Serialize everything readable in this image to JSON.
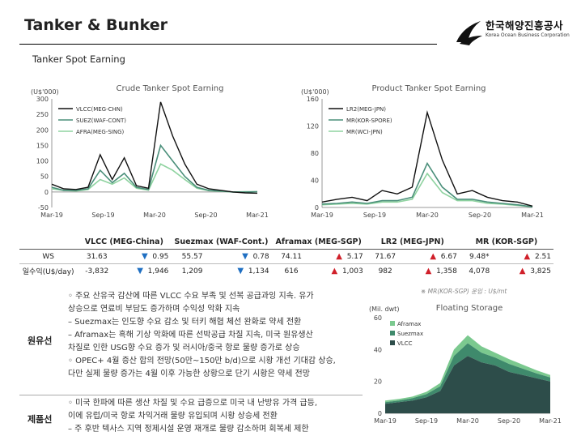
{
  "header": {
    "title": "Tanker & Bunker",
    "subtitle": "Tanker Spot Earning"
  },
  "logo": {
    "korean": "한국해양진흥공사",
    "english": "Korea Ocean Business Corporation"
  },
  "crude_chart": {
    "title": "Crude Tanker Spot Earning",
    "unit": "(U$'000)",
    "yticks": [
      "300",
      "250",
      "200",
      "150",
      "100",
      "50",
      "0",
      "-50"
    ],
    "xticks": [
      "Mar-19",
      "Sep-19",
      "Mar-20",
      "Sep-20",
      "Mar-21"
    ],
    "legend": [
      "VLCC(MEG-CHN)",
      "SUEZ(WAF-CONT)",
      "AFRA(MEG-SING)"
    ]
  },
  "product_chart": {
    "title": "Product Tanker Spot Earning",
    "unit": "(U$'000)",
    "yticks": [
      "160",
      "120",
      "80",
      "40",
      "0"
    ],
    "xticks": [
      "Mar-19",
      "Sep-19",
      "Mar-20",
      "Sep-20",
      "Mar-21"
    ],
    "legend": [
      "LR2(MEG-JPN)",
      "MR(KOR-SPORE)",
      "MR(WCI-JPN)"
    ]
  },
  "table": {
    "headers": [
      "VLCC (MEG-China)",
      "Suezmax (WAF-Cont.)",
      "Aframax (MEG-SGP)",
      "LR2 (MEG-JPN)",
      "MR (KOR-SGP)"
    ],
    "rows": [
      {
        "label": "WS",
        "cells": [
          {
            "value": "31.63",
            "dir": "▼",
            "change": "0.95"
          },
          {
            "value": "55.57",
            "dir": "▼",
            "change": "0.78"
          },
          {
            "value": "74.11",
            "dir": "▲",
            "change": "5.17"
          },
          {
            "value": "71.67",
            "dir": "▲",
            "change": "6.67"
          },
          {
            "value": "9.48*",
            "dir": "▲",
            "change": "2.51"
          }
        ]
      },
      {
        "label": "일수익(U$/day)",
        "cells": [
          {
            "value": "-3,832",
            "dir": "▼",
            "change": "1,946"
          },
          {
            "value": "1,209",
            "dir": "▼",
            "change": "1,134"
          },
          {
            "value": "616",
            "dir": "▲",
            "change": "1,003"
          },
          {
            "value": "982",
            "dir": "▲",
            "change": "1,358"
          },
          {
            "value": "4,078",
            "dir": "▲",
            "change": "3,825"
          }
        ]
      }
    ],
    "note": "※ MR(KOR-SGP) 운임 : U$/mt"
  },
  "sections": [
    {
      "category": "원유선",
      "lines": [
        "◦ 주요 산유국 감산에 따른 VLCC 수요 부족 및 선복 공급과잉 지속. 유가",
        "   상승으로 연료비 부담도 증가하며 수익성 악화 지속",
        "  – Suezmax는 인도향 수요 감소 및 터키 해협 체선 완화로 약세 전환",
        "  – Aframax는 흑해 기상 악화에 따른 선박공급 차질 지속, 미국 원유생산",
        "     차질로 인한 USG향 수요 증가 및 러시아/중국 항로 물량 증가로 상승",
        "◦ OPEC+ 4월 증산 합의 전망(50만~150만 b/d)으로 시황 개선 기대감 상승,",
        "   다만 실제 물량 증가는 4월 이후 가능한 상황으로 단기 시황은 약세 전망"
      ]
    },
    {
      "category": "제품선",
      "lines": [
        "◦ 미국 한파에 따른 생산 차질 및 수요 급증으로 미국 내 난방유 가격 급등,",
        "   이에 유럽/미국 항로 차익거래 물량 유입되며 시황 상승세 전환",
        "  – 주 후반 텍사스 지역 정제시설 운영 재개로 물량 감소하며 회복세 제한"
      ]
    }
  ],
  "storage_chart": {
    "title": "Floating Storage",
    "unit": "(Mil. dwt)",
    "yticks": [
      "60",
      "40",
      "20",
      "0"
    ],
    "xticks": [
      "Mar-19",
      "Sep-19",
      "Mar-20",
      "Sep-20",
      "Mar-21"
    ],
    "legend": [
      "Aframax",
      "Suezmax",
      "VLCC"
    ]
  },
  "colors": {
    "vlcc": "#111111",
    "suez": "#4a8f7a",
    "afra": "#8fd3a0",
    "lr2": "#111111",
    "mr_kor": "#4a8f7a",
    "mr_wci": "#8fd3a0",
    "storage_vlcc": "#2d4d4a",
    "storage_suez": "#3f8a6c",
    "storage_afra": "#7bc98f"
  },
  "chart_data": [
    {
      "type": "line",
      "title": "Crude Tanker Spot Earning",
      "ylabel": "(U$'000)",
      "ylim": [
        -50,
        300
      ],
      "x": [
        "Mar-19",
        "May-19",
        "Jul-19",
        "Sep-19",
        "Oct-19",
        "Nov-19",
        "Dec-19",
        "Jan-20",
        "Feb-20",
        "Mar-20",
        "Apr-20",
        "May-20",
        "Jun-20",
        "Jul-20",
        "Sep-20",
        "Nov-20",
        "Jan-21",
        "Mar-21"
      ],
      "series": [
        {
          "name": "VLCC(MEG-CHN)",
          "values": [
            25,
            10,
            8,
            15,
            120,
            40,
            110,
            20,
            12,
            290,
            180,
            90,
            25,
            10,
            5,
            0,
            -3,
            -4
          ]
        },
        {
          "name": "SUEZ(WAF-CONT)",
          "values": [
            15,
            5,
            5,
            10,
            70,
            30,
            60,
            15,
            8,
            150,
            100,
            50,
            15,
            5,
            3,
            0,
            0,
            1
          ]
        },
        {
          "name": "AFRA(MEG-SING)",
          "values": [
            10,
            5,
            3,
            8,
            40,
            25,
            45,
            12,
            6,
            90,
            70,
            40,
            12,
            4,
            2,
            0,
            1,
            1
          ]
        }
      ]
    },
    {
      "type": "line",
      "title": "Product Tanker Spot Earning",
      "ylabel": "(U$'000)",
      "ylim": [
        0,
        160
      ],
      "x": [
        "Mar-19",
        "May-19",
        "Jul-19",
        "Sep-19",
        "Nov-19",
        "Jan-20",
        "Mar-20",
        "Apr-20",
        "May-20",
        "Jun-20",
        "Jul-20",
        "Sep-20",
        "Nov-20",
        "Jan-21",
        "Mar-21"
      ],
      "series": [
        {
          "name": "LR2(MEG-JPN)",
          "values": [
            8,
            12,
            15,
            10,
            25,
            20,
            30,
            140,
            70,
            20,
            25,
            15,
            10,
            8,
            2
          ]
        },
        {
          "name": "MR(KOR-SPORE)",
          "values": [
            5,
            6,
            8,
            6,
            10,
            10,
            15,
            65,
            30,
            12,
            12,
            8,
            6,
            4,
            1
          ]
        },
        {
          "name": "MR(WCI-JPN)",
          "values": [
            4,
            5,
            6,
            5,
            8,
            8,
            12,
            50,
            22,
            10,
            10,
            6,
            5,
            3,
            1
          ]
        }
      ]
    },
    {
      "type": "area",
      "title": "Floating Storage",
      "ylabel": "(Mil. dwt)",
      "ylim": [
        0,
        60
      ],
      "x": [
        "Mar-19",
        "Jun-19",
        "Sep-19",
        "Dec-19",
        "Mar-20",
        "Apr-20",
        "May-20",
        "Jun-20",
        "Jul-20",
        "Sep-20",
        "Nov-20",
        "Jan-21",
        "Mar-21"
      ],
      "series": [
        {
          "name": "VLCC",
          "values": [
            6,
            7,
            8,
            10,
            14,
            30,
            36,
            32,
            30,
            26,
            24,
            22,
            20
          ]
        },
        {
          "name": "Suezmax",
          "values": [
            1,
            1,
            1.5,
            2,
            3,
            6,
            8,
            6,
            5,
            5,
            4,
            3,
            2.5
          ]
        },
        {
          "name": "Aframax",
          "values": [
            1,
            1,
            1,
            1.5,
            2,
            4,
            5,
            4,
            3,
            3,
            2.5,
            2,
            1.5
          ]
        }
      ]
    }
  ]
}
